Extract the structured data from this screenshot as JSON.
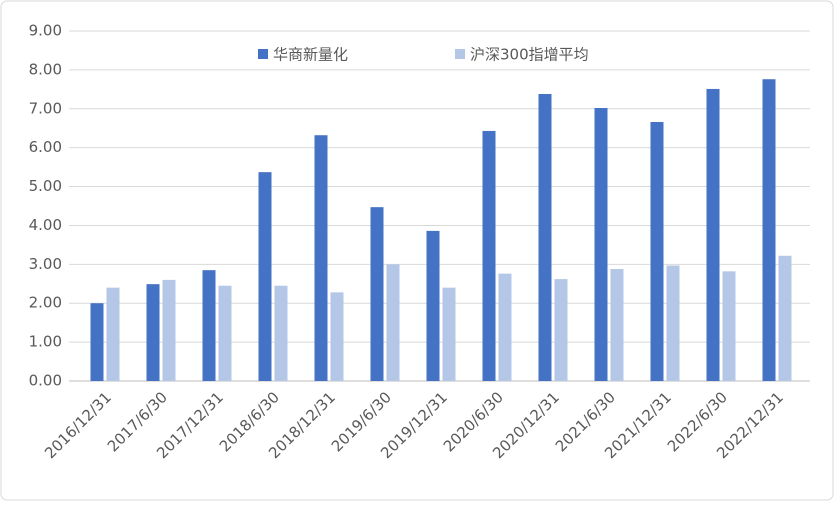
{
  "chart_data": {
    "type": "bar",
    "categories": [
      "2016/12/31",
      "2017/6/30",
      "2017/12/31",
      "2018/6/30",
      "2018/12/31",
      "2019/6/30",
      "2019/12/31",
      "2020/6/30",
      "2020/12/31",
      "2021/6/30",
      "2021/12/31",
      "2022/6/30",
      "2022/12/31"
    ],
    "series": [
      {
        "name": "华商新量化",
        "color": "#4472c4",
        "values": [
          2.0,
          2.49,
          2.85,
          5.37,
          6.32,
          4.47,
          3.86,
          6.43,
          7.38,
          7.02,
          6.66,
          7.51,
          7.76
        ]
      },
      {
        "name": "沪深300指增平均",
        "color": "#b4c7e7",
        "values": [
          2.4,
          2.6,
          2.45,
          2.45,
          2.28,
          3.0,
          2.4,
          2.76,
          2.62,
          2.88,
          2.97,
          2.82,
          3.22
        ]
      }
    ],
    "ylim": [
      0,
      9
    ],
    "yticks": [
      {
        "value": 0,
        "label": "0.00"
      },
      {
        "value": 1,
        "label": "1.00"
      },
      {
        "value": 2,
        "label": "2.00"
      },
      {
        "value": 3,
        "label": "3.00"
      },
      {
        "value": 4,
        "label": "4.00"
      },
      {
        "value": 5,
        "label": "5.00"
      },
      {
        "value": 6,
        "label": "6.00"
      },
      {
        "value": 7,
        "label": "7.00"
      },
      {
        "value": 8,
        "label": "8.00"
      },
      {
        "value": 9,
        "label": "9.00"
      }
    ],
    "grid": true,
    "legend": "top"
  }
}
